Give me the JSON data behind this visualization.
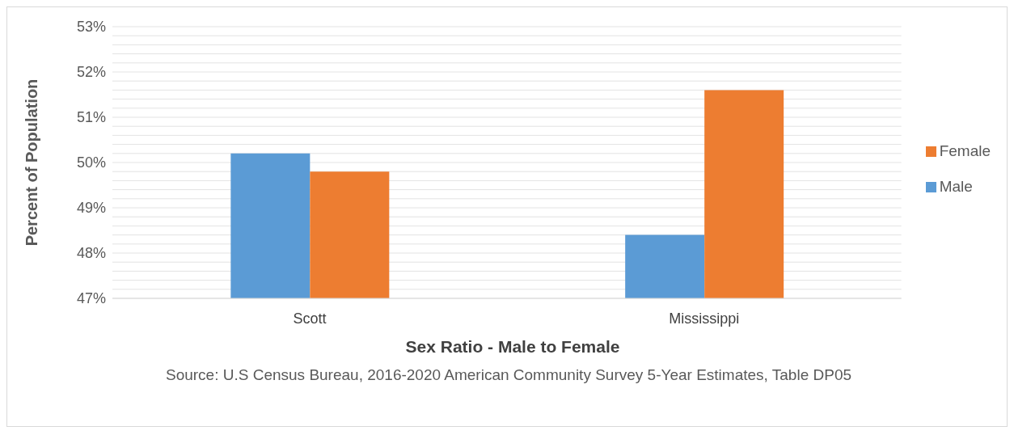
{
  "chart_data": {
    "type": "bar",
    "xlabel": "Sex Ratio - Male to Female",
    "ylabel": "Percent of Population",
    "annotations": [
      "Source: U.S Census Bureau, 2016-2020 American Community Survey 5-Year Estimates, Table DP05"
    ],
    "categories": [
      "Scott",
      "Mississippi"
    ],
    "series": [
      {
        "name": "Male",
        "color": "#5b9bd5",
        "values": [
          50.2,
          48.4
        ]
      },
      {
        "name": "Female",
        "color": "#ed7d31",
        "values": [
          49.8,
          51.6
        ]
      }
    ],
    "ylim": [
      47,
      53
    ],
    "yticks": [
      {
        "value": 47,
        "label": "47%"
      },
      {
        "value": 47.2,
        "label": null
      },
      {
        "value": 47.4,
        "label": null
      },
      {
        "value": 47.6,
        "label": null
      },
      {
        "value": 47.8,
        "label": null
      },
      {
        "value": 48,
        "label": "48%"
      },
      {
        "value": 48.2,
        "label": null
      },
      {
        "value": 48.4,
        "label": null
      },
      {
        "value": 48.6,
        "label": null
      },
      {
        "value": 48.8,
        "label": null
      },
      {
        "value": 49,
        "label": "49%"
      },
      {
        "value": 49.2,
        "label": null
      },
      {
        "value": 49.4,
        "label": null
      },
      {
        "value": 49.6,
        "label": null
      },
      {
        "value": 49.8,
        "label": null
      },
      {
        "value": 50,
        "label": "50%"
      },
      {
        "value": 50.2,
        "label": null
      },
      {
        "value": 50.4,
        "label": null
      },
      {
        "value": 50.6,
        "label": null
      },
      {
        "value": 50.8,
        "label": null
      },
      {
        "value": 51,
        "label": "51%"
      },
      {
        "value": 51.2,
        "label": null
      },
      {
        "value": 51.4,
        "label": null
      },
      {
        "value": 51.6,
        "label": null
      },
      {
        "value": 51.8,
        "label": null
      },
      {
        "value": 52,
        "label": "52%"
      },
      {
        "value": 52.2,
        "label": null
      },
      {
        "value": 52.4,
        "label": null
      },
      {
        "value": 52.6,
        "label": null
      },
      {
        "value": 52.8,
        "label": null
      },
      {
        "value": 53,
        "label": "53%"
      }
    ],
    "grid": "y",
    "legend": "right"
  }
}
